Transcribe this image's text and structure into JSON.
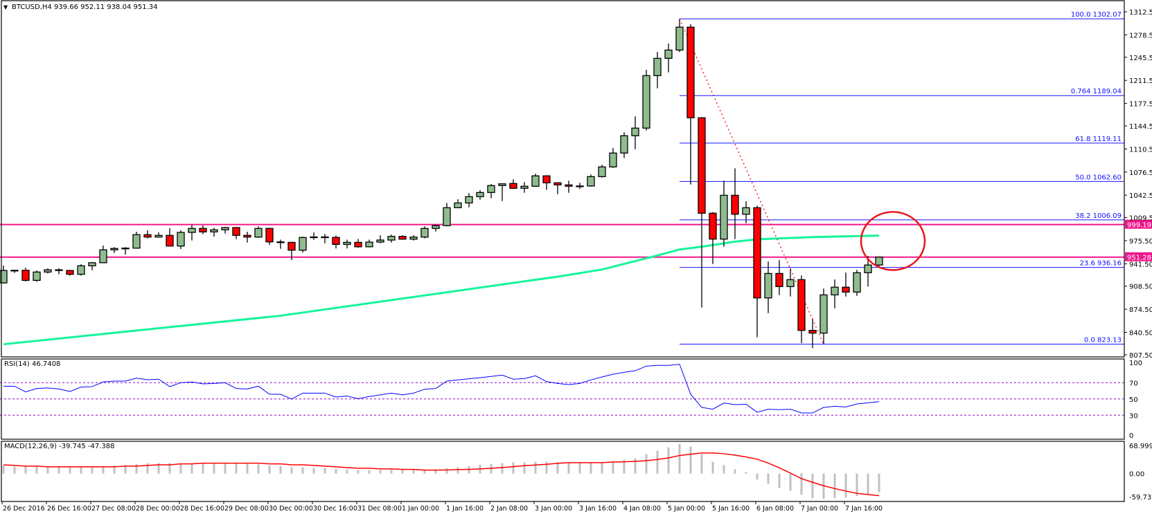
{
  "header": {
    "marker": "▼",
    "title": "BTCUSD,H4  939.66 952.11 938.04 951.34"
  },
  "colors": {
    "bull_candle": "#8fbc8f",
    "bear_candle": "#ff0000",
    "candle_outline": "#000000",
    "moving_average": "#14f59a",
    "fib_lines": "#1010ff",
    "horizontal_levels": "#f0168a",
    "trendline": "#ff0000",
    "annotation_circle": "#e8161e",
    "rsi_line": "#0000ff",
    "rsi_levels": "#9400d3",
    "macd_histogram": "#c0c0c0",
    "macd_signal": "#ff0000"
  },
  "chart_data": [
    {
      "type": "candlestick",
      "symbol": "BTCUSD",
      "timeframe": "H4",
      "first_bar": "26 Dec 00:00",
      "ohlc_fields": [
        "open",
        "high",
        "low",
        "close"
      ],
      "ylim": [
        807.5,
        1312.5
      ],
      "y_ticks": [
        1312.5,
        1278.5,
        1245.5,
        1211.5,
        1177.5,
        1144.5,
        1110.5,
        1076.5,
        1042.5,
        1009.5,
        975.5,
        941.5,
        908.5,
        874.5,
        840.5,
        807.5
      ],
      "x_tick_labels": [
        "26 Dec 2016",
        "26 Dec 16:00",
        "27 Dec 08:00",
        "28 Dec 00:00",
        "28 Dec 16:00",
        "29 Dec 08:00",
        "30 Dec 00:00",
        "30 Dec 16:00",
        "31 Dec 08:00",
        "1 Jan 00:00",
        "1 Jan 16:00",
        "2 Jan 08:00",
        "3 Jan 00:00",
        "3 Jan 16:00",
        "4 Jan 08:00",
        "5 Jan 00:00",
        "5 Jan 16:00",
        "6 Jan 08:00",
        "7 Jan 00:00",
        "7 Jan 16:00"
      ],
      "candles": [
        [
          913.3,
          938.8,
          912.5,
          931.7
        ],
        [
          931.7,
          932.5,
          928,
          931.9
        ],
        [
          931.9,
          935.7,
          915.7,
          917
        ],
        [
          917,
          931.7,
          915,
          929.3
        ],
        [
          929.3,
          934.7,
          927,
          932.6
        ],
        [
          932.6,
          934.7,
          926,
          931.6
        ],
        [
          931.6,
          932.4,
          924,
          926
        ],
        [
          926,
          940.8,
          924,
          938.5
        ],
        [
          938.5,
          944,
          932,
          943
        ],
        [
          943,
          968.3,
          942.5,
          962
        ],
        [
          962,
          966,
          957.4,
          964
        ],
        [
          964,
          966,
          955,
          964.5
        ],
        [
          964.5,
          988.7,
          964,
          984.3
        ],
        [
          984.3,
          990.7,
          979,
          980.8
        ],
        [
          980.8,
          987.7,
          980,
          983.3
        ],
        [
          983.3,
          993.8,
          967,
          967.6
        ],
        [
          967.6,
          990.7,
          963.2,
          987.7
        ],
        [
          987.7,
          998.9,
          975.7,
          993.5
        ],
        [
          993.5,
          997.9,
          985,
          988.4
        ],
        [
          988.4,
          994.5,
          981.5,
          991.5
        ],
        [
          991.5,
          995.8,
          986,
          994.8
        ],
        [
          994.8,
          995.2,
          977.8,
          983.3
        ],
        [
          983.3,
          988.7,
          972.7,
          980.8
        ],
        [
          980.8,
          996.5,
          979.8,
          993.5
        ],
        [
          993.5,
          994.5,
          969.3,
          973.7
        ],
        [
          973.7,
          977,
          963.5,
          973
        ],
        [
          973,
          973.5,
          947,
          961.5
        ],
        [
          961.5,
          981.3,
          958,
          980.2
        ],
        [
          980.2,
          987.7,
          976.8,
          981
        ],
        [
          981,
          985.3,
          971.7,
          980.3
        ],
        [
          980.3,
          983,
          964,
          970
        ],
        [
          970,
          977,
          964,
          973
        ],
        [
          973,
          978,
          965,
          966.5
        ],
        [
          966.5,
          977,
          965.6,
          973.4
        ],
        [
          973.4,
          983.4,
          971.7,
          976.4
        ],
        [
          976.4,
          984.4,
          972.7,
          981.8
        ],
        [
          981.8,
          983.4,
          977,
          977.7
        ],
        [
          977.7,
          983.4,
          975.7,
          980.8
        ],
        [
          980.8,
          996.5,
          978.8,
          993.5
        ],
        [
          993.5,
          998.9,
          989,
          997.6
        ],
        [
          997.6,
          1031,
          996.5,
          1024
        ],
        [
          1024,
          1036.4,
          1024,
          1031
        ],
        [
          1031,
          1045.4,
          1024.6,
          1040.3
        ],
        [
          1040.3,
          1049.8,
          1035.8,
          1046.4
        ],
        [
          1046.4,
          1059,
          1037.9,
          1056.6
        ],
        [
          1056.6,
          1060,
          1033.8,
          1059.2
        ],
        [
          1059.7,
          1065.8,
          1051.6,
          1052.6
        ],
        [
          1052.6,
          1061.7,
          1046,
          1055.6
        ],
        [
          1055.6,
          1074,
          1055,
          1070.9
        ],
        [
          1070.9,
          1071.9,
          1050.5,
          1060.7
        ],
        [
          1060.7,
          1061.2,
          1044,
          1057.6
        ],
        [
          1057.6,
          1063.7,
          1046,
          1055.6
        ],
        [
          1055.6,
          1060.7,
          1051.6,
          1056
        ],
        [
          1056,
          1072.9,
          1055,
          1069.8
        ],
        [
          1069.8,
          1087.2,
          1068.4,
          1084.1
        ],
        [
          1084.1,
          1112,
          1082.7,
          1104.5
        ],
        [
          1104.5,
          1135.1,
          1097,
          1130
        ],
        [
          1130,
          1158.5,
          1110.2,
          1141.2
        ],
        [
          1141.2,
          1227,
          1137.7,
          1218.5
        ],
        [
          1218.5,
          1253.4,
          1199.8,
          1243.9
        ],
        [
          1243.9,
          1265.7,
          1223.2,
          1256.1
        ],
        [
          1256.1,
          1302.07,
          1253.1,
          1289.8
        ],
        [
          1289.8,
          1294,
          1058.2,
          1156.4
        ],
        [
          1156.4,
          1157.4,
          877,
          1015.9
        ],
        [
          1015.9,
          1017.6,
          941,
          977.8
        ],
        [
          977.8,
          1063.7,
          966.6,
          1042.3
        ],
        [
          1042.3,
          1082,
          977.8,
          1014.4
        ],
        [
          1014.4,
          1033.5,
          1001.2,
          1024
        ],
        [
          1024,
          1027,
          833.2,
          891.2
        ],
        [
          891.2,
          944.9,
          868.8,
          927.2
        ],
        [
          927.2,
          946.9,
          895.3,
          907.9
        ],
        [
          907.9,
          934.7,
          893.3,
          918.1
        ],
        [
          918.1,
          924.2,
          824.7,
          843.4
        ],
        [
          843.4,
          861.4,
          817.3,
          839.4
        ],
        [
          839.4,
          905,
          823.13,
          895.7
        ],
        [
          895.7,
          918.4,
          876,
          907
        ],
        [
          907,
          928.6,
          893.3,
          899.8
        ],
        [
          899.8,
          932.6,
          894.3,
          928.3
        ],
        [
          928.3,
          953,
          908,
          939.66
        ],
        [
          939.66,
          952.11,
          938.04,
          951.34
        ]
      ],
      "moving_average_points": [
        [
          "26 Dec 00:00",
          823
        ],
        [
          "30 Dec 04:00",
          865
        ],
        [
          "3 Jan 08:00",
          922.5
        ],
        [
          "4 Jan 00:00",
          933
        ],
        [
          "4 Jan 20:00",
          953.7
        ],
        [
          "5 Jan 04:00",
          962.5
        ],
        [
          "5 Jan 12:00",
          966.6
        ],
        [
          "6 Jan 00:00",
          974
        ],
        [
          "6 Jan 08:00",
          977.5
        ],
        [
          "7 Jan 04:00",
          980.8
        ],
        [
          "8 Jan 04:00",
          983
        ]
      ],
      "fibonacci": {
        "start": "5 Jan 04:00",
        "levels": [
          {
            "level": "100.0",
            "price": 1302.07,
            "label": "100.0  1302.07"
          },
          {
            "level": "0.764",
            "price": 1189.04,
            "label": "0.764  1189.04"
          },
          {
            "level": "61.8",
            "price": 1119.11,
            "label": "61.8  1119.11"
          },
          {
            "level": "50.0",
            "price": 1062.6,
            "label": "50.0 1062.60"
          },
          {
            "level": "38.2",
            "price": 1006.09,
            "label": "38.2  1006.09"
          },
          {
            "level": "23.6",
            "price": 936.16,
            "label": "23.6  936.16"
          },
          {
            "level": "0.0",
            "price": 823.13,
            "label": "0.0  823.13"
          }
        ]
      },
      "trendline": {
        "from": [
          "5 Jan 04:00",
          1302.07
        ],
        "to": [
          "7 Jan 08:00",
          823.13
        ],
        "style": "dotted"
      },
      "horizontal_levels": [
        {
          "price": 999.19,
          "label": "999.19"
        },
        {
          "price": 951.28,
          "label": "951.28"
        }
      ],
      "annotation": {
        "shape": "circle",
        "around": "8 Jan 04:00",
        "price": 975
      }
    },
    {
      "type": "line",
      "title": "RSI(14) 46.7408",
      "ylim": [
        0,
        100
      ],
      "y_ticks": [
        "100",
        "70",
        "50",
        "30",
        "0"
      ],
      "levels": [
        70,
        50,
        30
      ],
      "values": [
        65.7,
        65.7,
        58.7,
        62.9,
        63.5,
        62.3,
        59.2,
        64.6,
        65.2,
        70.9,
        72,
        72,
        75.7,
        73.7,
        74.3,
        65.2,
        70,
        70.9,
        68.6,
        69.1,
        70,
        62.9,
        62.3,
        65.7,
        55.8,
        55.8,
        49.9,
        57.2,
        57.2,
        57.2,
        52.4,
        53.5,
        50.4,
        53,
        55,
        57.2,
        55,
        57.2,
        62,
        62.9,
        72,
        73.4,
        74.8,
        76.2,
        77.7,
        79.4,
        74.3,
        75.1,
        78.5,
        71.4,
        69.1,
        67.7,
        69.1,
        73.4,
        77.1,
        80.5,
        82.8,
        84.8,
        90.4,
        91.3,
        91.3,
        92.7,
        55.8,
        39.6,
        37.4,
        45,
        43,
        43.6,
        33.7,
        37.4,
        36.8,
        37.4,
        32.8,
        32.8,
        39.6,
        41,
        40.2,
        43.9,
        45.3,
        46.7408
      ]
    },
    {
      "type": "bar",
      "title": "MACD(12,26,9) -39.745 -47.388",
      "ylim": [
        -59.731,
        68.999
      ],
      "y_ticks": [
        "68.999",
        "0.00",
        "-59.731"
      ],
      "histogram": [
        17,
        14.8,
        14.8,
        14.8,
        14.8,
        13.8,
        13.8,
        13.8,
        13.8,
        15.8,
        17.3,
        18.2,
        20.7,
        22.2,
        22.2,
        22.2,
        21.2,
        21.2,
        21.2,
        21.2,
        21.2,
        21.2,
        21.2,
        19.7,
        17.3,
        16.3,
        13.3,
        13.3,
        11.8,
        11.8,
        9.9,
        8.9,
        7.4,
        7.4,
        7.4,
        8.4,
        8.4,
        8.4,
        8.4,
        8.9,
        11.3,
        13.3,
        15.8,
        18.7,
        20.7,
        22.2,
        23.7,
        23.7,
        25.1,
        25.1,
        24.7,
        23.2,
        23.2,
        23.2,
        23.2,
        26.1,
        29.6,
        32.5,
        41.4,
        48.8,
        56.2,
        63.6,
        57.7,
        41.4,
        25.1,
        17.8,
        8.9,
        3,
        -13.3,
        -21.7,
        -30.6,
        -36.5,
        -45.4,
        -52.8,
        -54.2,
        -52.8,
        -51.3,
        -47.8,
        -43.9,
        -39.745
      ],
      "signal": [
        18.7,
        17.3,
        15.8,
        15.8,
        14.3,
        14.3,
        14.3,
        14.3,
        14.3,
        14.3,
        14.3,
        15.8,
        15.8,
        17.3,
        18.7,
        18.7,
        20.7,
        20.7,
        22.2,
        22.2,
        22.2,
        22.2,
        22.2,
        22.2,
        20.7,
        20.7,
        18.7,
        18.7,
        17.3,
        15.8,
        14.3,
        12.8,
        11.3,
        11.3,
        9.9,
        9.9,
        8.9,
        8.9,
        7.4,
        7.4,
        7.6,
        8.4,
        8.9,
        9.9,
        11.3,
        12.8,
        14.8,
        16.8,
        18.2,
        19.7,
        21.7,
        23.2,
        23.2,
        23.2,
        23.2,
        24.7,
        25.1,
        26.1,
        27.6,
        30.1,
        33.5,
        38.5,
        41.4,
        43.9,
        43.9,
        42.4,
        39.4,
        35.5,
        30.6,
        22.2,
        12.3,
        1,
        -10.8,
        -18.7,
        -26.1,
        -32.1,
        -37.5,
        -42.4,
        -44.9,
        -47.388
      ]
    }
  ]
}
